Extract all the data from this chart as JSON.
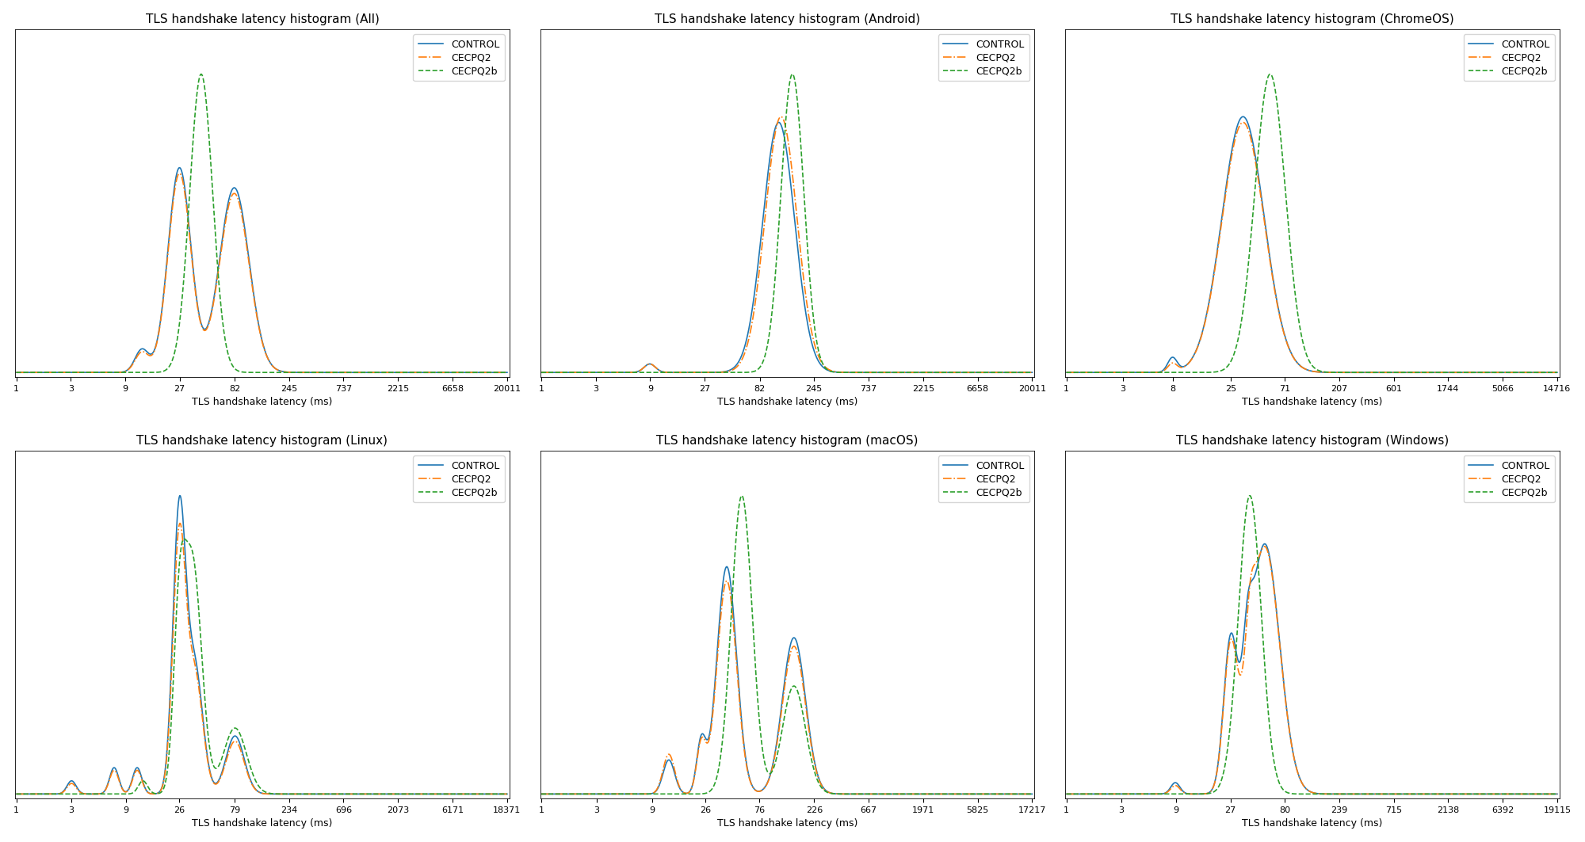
{
  "subplots": [
    {
      "title": "TLS handshake latency histogram (All)",
      "xticks": [
        1,
        3,
        9,
        27,
        82,
        245,
        737,
        2215,
        6658,
        20011
      ],
      "shape": "all"
    },
    {
      "title": "TLS handshake latency histogram (Android)",
      "xticks": [
        1,
        3,
        9,
        27,
        82,
        245,
        737,
        2215,
        6658,
        20011
      ],
      "shape": "android"
    },
    {
      "title": "TLS handshake latency histogram (ChromeOS)",
      "xticks": [
        1,
        3,
        8,
        25,
        71,
        207,
        601,
        1744,
        5066,
        14716
      ],
      "shape": "chromeos"
    },
    {
      "title": "TLS handshake latency histogram (Linux)",
      "xticks": [
        1,
        3,
        9,
        26,
        79,
        234,
        696,
        2073,
        6171,
        18371
      ],
      "shape": "linux"
    },
    {
      "title": "TLS handshake latency histogram (macOS)",
      "xticks": [
        1,
        3,
        9,
        26,
        76,
        226,
        667,
        1971,
        5825,
        17217
      ],
      "shape": "macos"
    },
    {
      "title": "TLS handshake latency histogram (Windows)",
      "xticks": [
        1,
        3,
        9,
        27,
        80,
        239,
        715,
        2138,
        6392,
        19115
      ],
      "shape": "windows"
    }
  ],
  "colors": {
    "control": "#1f77b4",
    "cecpq2": "#ff7f0e",
    "cecpq2b": "#2ca02c"
  },
  "xlabel": "TLS handshake latency (ms)",
  "figsize": [
    20.0,
    10.63
  ],
  "dpi": 100
}
